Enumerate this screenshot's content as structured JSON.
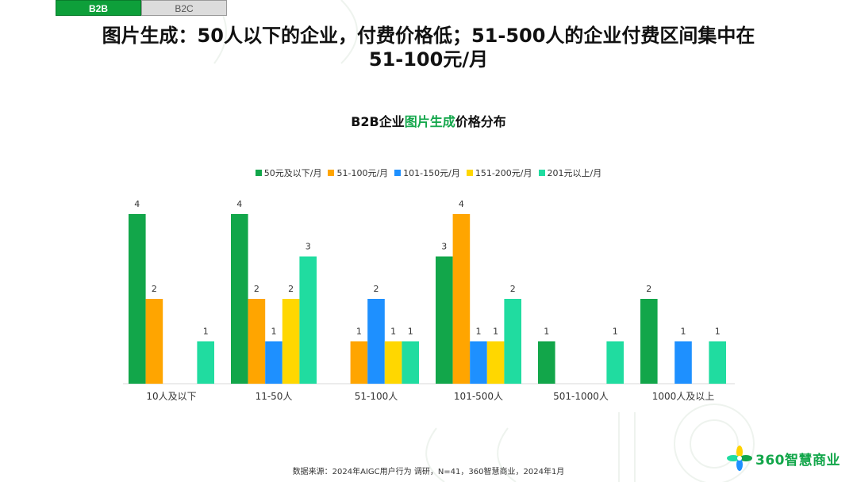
{
  "tabs": [
    {
      "label": "B2B",
      "active": true
    },
    {
      "label": "B2C",
      "active": false
    }
  ],
  "headline": {
    "line1": "图片生成：50人以下的企业，付费价格低；51-500人的企业付费区间集中在",
    "line2": "51-100元/月"
  },
  "chart_data": {
    "type": "bar",
    "title": "B2B企业图片生成价格分布",
    "title_parts": {
      "prefix": "B2B企业",
      "highlight": "图片生成",
      "suffix": "价格分布"
    },
    "categories": [
      "10人及以下",
      "11-50人",
      "51-100人",
      "101-500人",
      "501-1000人",
      "1000人及以上"
    ],
    "series": [
      {
        "name": "50元及以下/月",
        "color": "#12a64a",
        "values": [
          4,
          4,
          0,
          3,
          1,
          2
        ]
      },
      {
        "name": "51-100元/月",
        "color": "#ffa500",
        "values": [
          2,
          2,
          1,
          4,
          0,
          0
        ]
      },
      {
        "name": "101-150元/月",
        "color": "#1e90ff",
        "values": [
          0,
          1,
          2,
          1,
          0,
          1
        ]
      },
      {
        "name": "151-200元/月",
        "color": "#ffd700",
        "values": [
          0,
          2,
          1,
          1,
          0,
          0
        ]
      },
      {
        "name": "201元以上/月",
        "color": "#20dca0",
        "values": [
          1,
          3,
          1,
          2,
          1,
          1
        ]
      }
    ],
    "ylim": [
      0,
      4
    ],
    "grid": false,
    "legend": "top-center"
  },
  "source": "数据来源：2024年AIGC用户行为 调研，N=41，360智慧商业，2024年1月",
  "logo": {
    "text": "360智慧商业",
    "icon": "pinwheel-logo-icon"
  }
}
